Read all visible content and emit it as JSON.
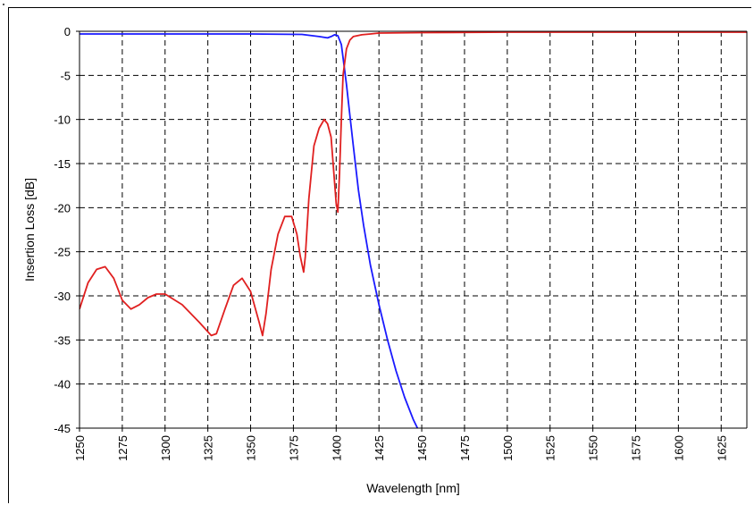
{
  "chart_data": {
    "type": "line",
    "xlabel": "Wavelength [nm]",
    "ylabel": "Insertion Loss [dB]",
    "xlim": [
      1250,
      1640
    ],
    "ylim": [
      -45,
      0
    ],
    "xticks": [
      1250,
      1275,
      1300,
      1325,
      1350,
      1375,
      1400,
      1425,
      1450,
      1475,
      1500,
      1525,
      1550,
      1575,
      1600,
      1625
    ],
    "yticks": [
      0,
      -5,
      -10,
      -15,
      -20,
      -25,
      -30,
      -35,
      -40,
      -45
    ],
    "grid": true,
    "legend": "none",
    "series": [
      {
        "color": "#1a1aff",
        "x": [
          1250,
          1300,
          1350,
          1380,
          1390,
          1395,
          1397,
          1399,
          1401,
          1403,
          1404,
          1406,
          1408,
          1410,
          1413,
          1416,
          1420,
          1425,
          1430,
          1435,
          1440,
          1445,
          1447.5
        ],
        "y": [
          -0.3,
          -0.3,
          -0.3,
          -0.35,
          -0.6,
          -0.75,
          -0.6,
          -0.4,
          -0.5,
          -1.5,
          -3,
          -6,
          -9.5,
          -13,
          -18,
          -22,
          -26.5,
          -31,
          -35,
          -38.5,
          -41.5,
          -44,
          -45
        ]
      },
      {
        "color": "#e02020",
        "x": [
          1250,
          1255,
          1260,
          1265,
          1270,
          1275,
          1280,
          1285,
          1290,
          1295,
          1300,
          1310,
          1320,
          1327,
          1330,
          1335,
          1340,
          1345,
          1350,
          1355,
          1357,
          1359,
          1362,
          1366,
          1370,
          1374,
          1377,
          1379,
          1381,
          1382,
          1384,
          1387,
          1390,
          1393,
          1395,
          1397,
          1399,
          1400,
          1401,
          1402,
          1403,
          1404,
          1406,
          1408,
          1410,
          1415,
          1420,
          1425,
          1450,
          1500,
          1550,
          1600,
          1640
        ],
        "y": [
          -31.5,
          -28.5,
          -27,
          -26.7,
          -28,
          -30.5,
          -31.5,
          -31,
          -30.2,
          -29.8,
          -29.8,
          -31,
          -33,
          -34.5,
          -34.3,
          -31.5,
          -28.8,
          -28,
          -29.5,
          -33,
          -34.5,
          -32,
          -27,
          -23,
          -21,
          -21,
          -23,
          -25.5,
          -27.3,
          -25.5,
          -19,
          -13,
          -11,
          -10,
          -10.5,
          -12,
          -17,
          -19.5,
          -20.5,
          -16,
          -10,
          -5,
          -2,
          -1,
          -0.6,
          -0.4,
          -0.3,
          -0.2,
          -0.15,
          -0.1,
          -0.1,
          -0.1,
          -0.1
        ]
      }
    ]
  }
}
